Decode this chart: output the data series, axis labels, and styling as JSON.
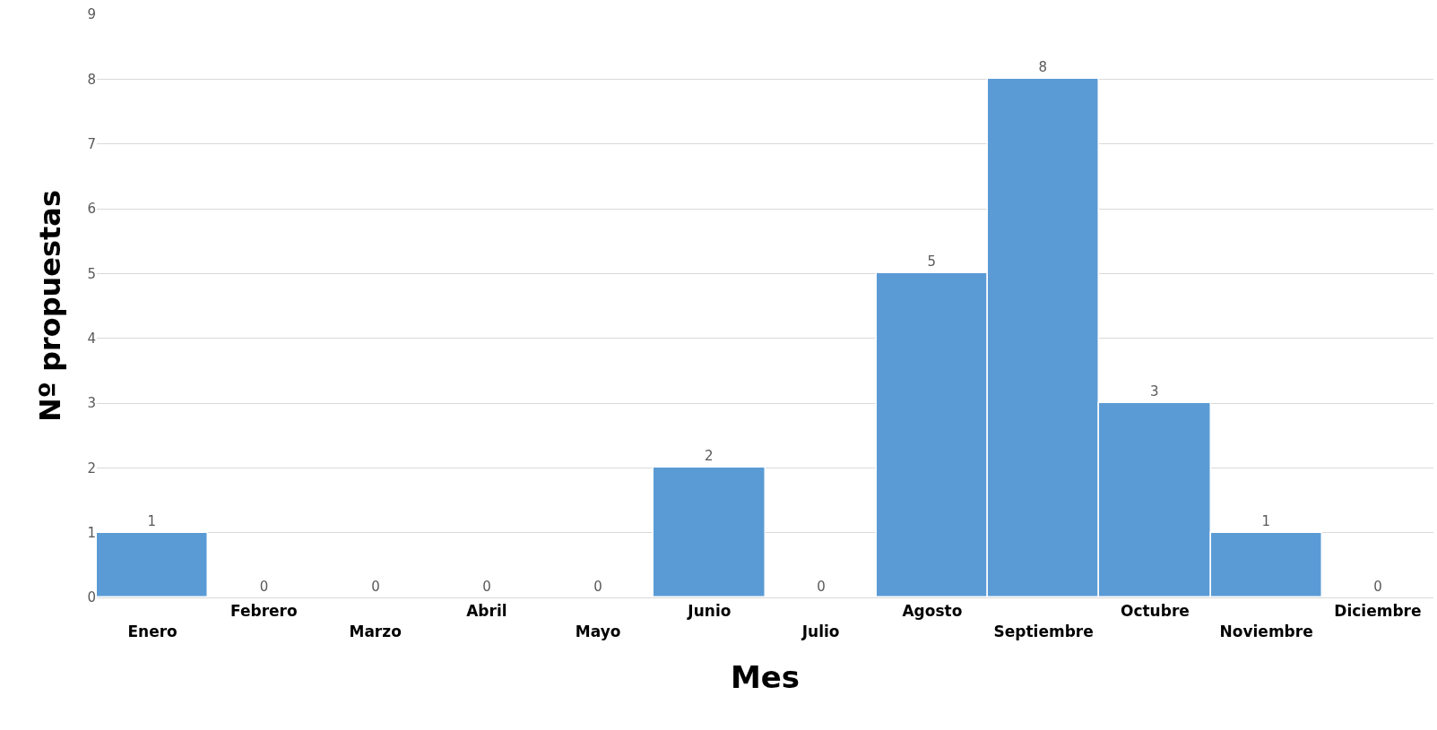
{
  "chart_data": {
    "type": "bar",
    "xlabel": "Mes",
    "ylabel": "Nº propuestas",
    "categories": [
      "Enero",
      "Febrero",
      "Marzo",
      "Abril",
      "Mayo",
      "Junio",
      "Julio",
      "Agosto",
      "Septiembre",
      "Octubre",
      "Noviembre",
      "Diciembre"
    ],
    "values": [
      1,
      0,
      0,
      0,
      0,
      2,
      0,
      5,
      8,
      3,
      1,
      0
    ],
    "color": "#5b9bd5",
    "ylim": [
      0,
      9
    ],
    "yticks": [
      0,
      1,
      2,
      3,
      4,
      5,
      6,
      7,
      8,
      9
    ],
    "grid": "y",
    "data_labels": true
  }
}
